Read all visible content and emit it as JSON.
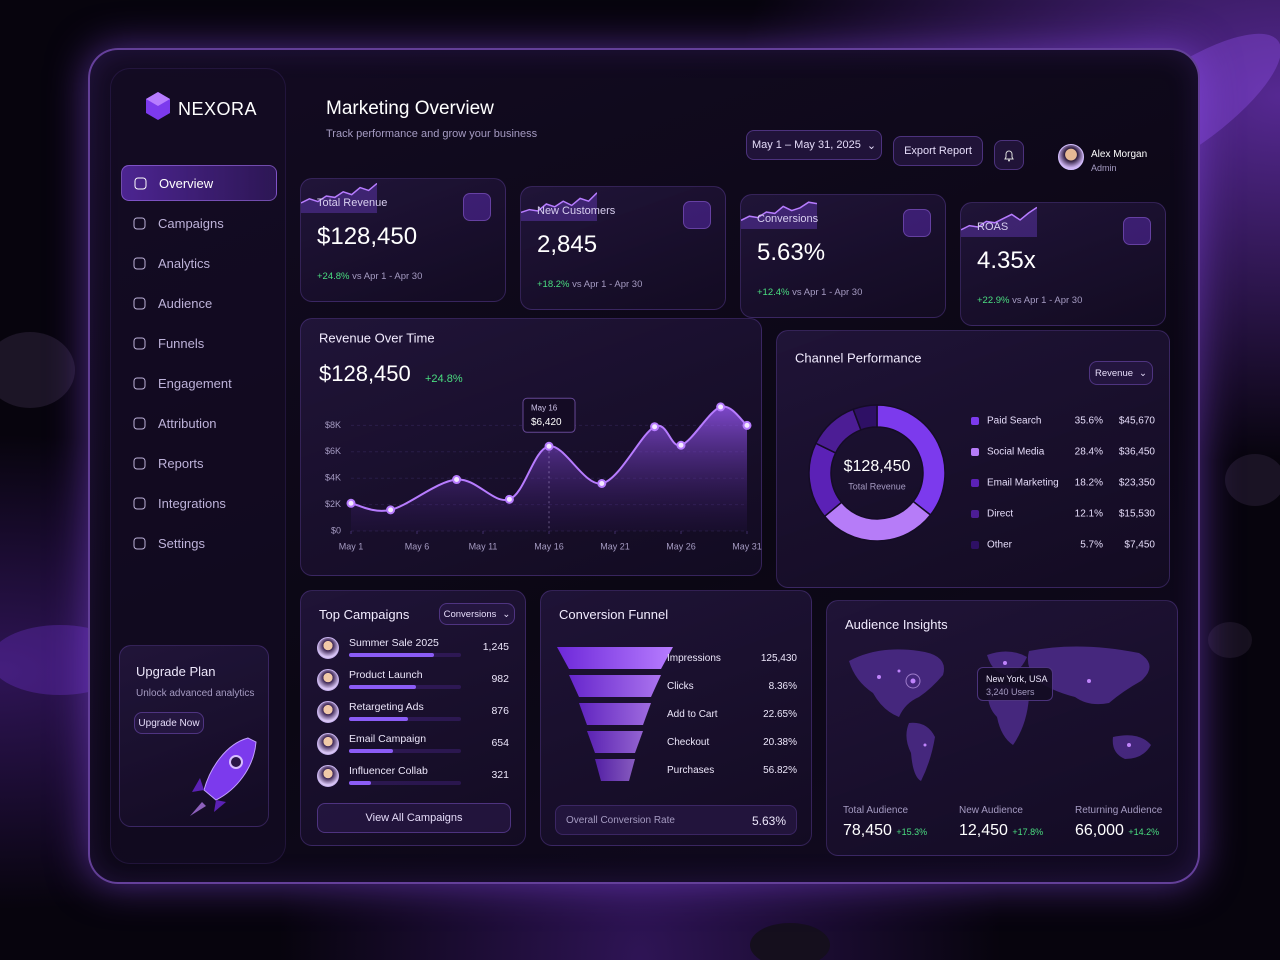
{
  "sidebar": {
    "brand": "NEXORA",
    "nav": [
      "Overview",
      "Campaigns",
      "Analytics",
      "Audience",
      "Funnels",
      "Engagement",
      "Attribution",
      "Reports",
      "Integrations",
      "Settings"
    ],
    "upgrade": {
      "title": "Upgrade Plan",
      "text": "Unlock advanced analytics",
      "button": "Upgrade Now"
    }
  },
  "header": {
    "title": "Marketing Overview",
    "subtitle": "Track performance and grow your business",
    "date_range": "May 1 – May 31, 2025",
    "export": "Export Report",
    "user": {
      "name": "Alex Morgan",
      "role": "Admin"
    }
  },
  "kpis": [
    {
      "label": "Total Revenue",
      "value": "$128,450",
      "change": "+24.8%",
      "compare": "vs Apr 1 - Apr 30"
    },
    {
      "label": "New Customers",
      "value": "2,845",
      "change": "+18.2%",
      "compare": "vs Apr 1 - Apr 30"
    },
    {
      "label": "Conversions",
      "value": "5.63%",
      "change": "+12.4%",
      "compare": "vs Apr 1 - Apr 30"
    },
    {
      "label": "ROAS",
      "value": "4.35x",
      "change": "+22.9%",
      "compare": "vs Apr 1 - Apr 30"
    }
  ],
  "revenue_chart": {
    "type": "line",
    "title": "Revenue Over Time",
    "total": "$128,450",
    "change": "+24.8%",
    "x": [
      1,
      4,
      9,
      13,
      16,
      20,
      24,
      26,
      29,
      31
    ],
    "values": [
      2100,
      1600,
      3900,
      2400,
      6420,
      3600,
      7900,
      6500,
      9400,
      8000
    ],
    "xlim": [
      1,
      31
    ],
    "xticks": [
      {
        "value": 1,
        "label": "May 1"
      },
      {
        "value": 6,
        "label": "May 6"
      },
      {
        "value": 11,
        "label": "May 11"
      },
      {
        "value": 16,
        "label": "May 16"
      },
      {
        "value": 21,
        "label": "May 21"
      },
      {
        "value": 26,
        "label": "May 26"
      },
      {
        "value": 31,
        "label": "May 31"
      }
    ],
    "ylim": [
      0,
      10000
    ],
    "yticks": [
      {
        "value": 0,
        "label": "$0"
      },
      {
        "value": 2000,
        "label": "$2K"
      },
      {
        "value": 4000,
        "label": "$4K"
      },
      {
        "value": 6000,
        "label": "$6K"
      },
      {
        "value": 8000,
        "label": "$8K"
      }
    ],
    "color": "#b77cff",
    "tooltip": {
      "date": "May 16",
      "value": "$6,420"
    }
  },
  "channel_chart": {
    "type": "pie",
    "title": "Channel Performance",
    "metric": "Revenue",
    "center_value": "$128,450",
    "center_label": "Total Revenue",
    "categories": [
      "Paid Search",
      "Social Media",
      "Email Marketing",
      "Direct",
      "Other"
    ],
    "values": [
      35.6,
      28.4,
      18.2,
      12.1,
      5.7
    ],
    "value_labels": [
      "35.6%",
      "28.4%",
      "18.2%",
      "12.1%",
      "5.7%"
    ],
    "amounts": [
      "$45,670",
      "$36,450",
      "$23,350",
      "$15,530",
      "$7,450"
    ],
    "colors": [
      "#7c3aed",
      "#b67cf8",
      "#5b21b6",
      "#4c1d95",
      "#2e1065"
    ]
  },
  "campaigns": {
    "type": "bar",
    "title": "Top Campaigns",
    "metric": "Conversions",
    "categories": [
      "Summer Sale 2025",
      "Product Launch",
      "Retargeting Ads",
      "Email Campaign",
      "Influencer Collab"
    ],
    "values": [
      1245,
      982,
      876,
      654,
      321
    ],
    "value_labels": [
      "1,245",
      "982",
      "876",
      "654",
      "321"
    ],
    "xlim": [
      0,
      1650
    ],
    "color": "#8b5cf6",
    "button": "View All Campaigns"
  },
  "funnel": {
    "title": "Conversion Funnel",
    "stages": [
      {
        "name": "Impressions",
        "value": "125,430"
      },
      {
        "name": "Clicks",
        "value": "8.36%"
      },
      {
        "name": "Add to Cart",
        "value": "22.65%"
      },
      {
        "name": "Checkout",
        "value": "20.38%"
      },
      {
        "name": "Purchases",
        "value": "56.82%"
      }
    ],
    "overall_label": "Overall Conversion Rate",
    "overall_value": "5.63%"
  },
  "audience": {
    "title": "Audience Insights",
    "tooltip": {
      "city": "New York, USA",
      "users": "3,240 Users"
    },
    "stats": [
      {
        "label": "Total Audience",
        "value": "78,450",
        "change": "+15.3%"
      },
      {
        "label": "New Audience",
        "value": "12,450",
        "change": "+17.8%"
      },
      {
        "label": "Returning Audience",
        "value": "66,000",
        "change": "+14.2%"
      }
    ]
  }
}
